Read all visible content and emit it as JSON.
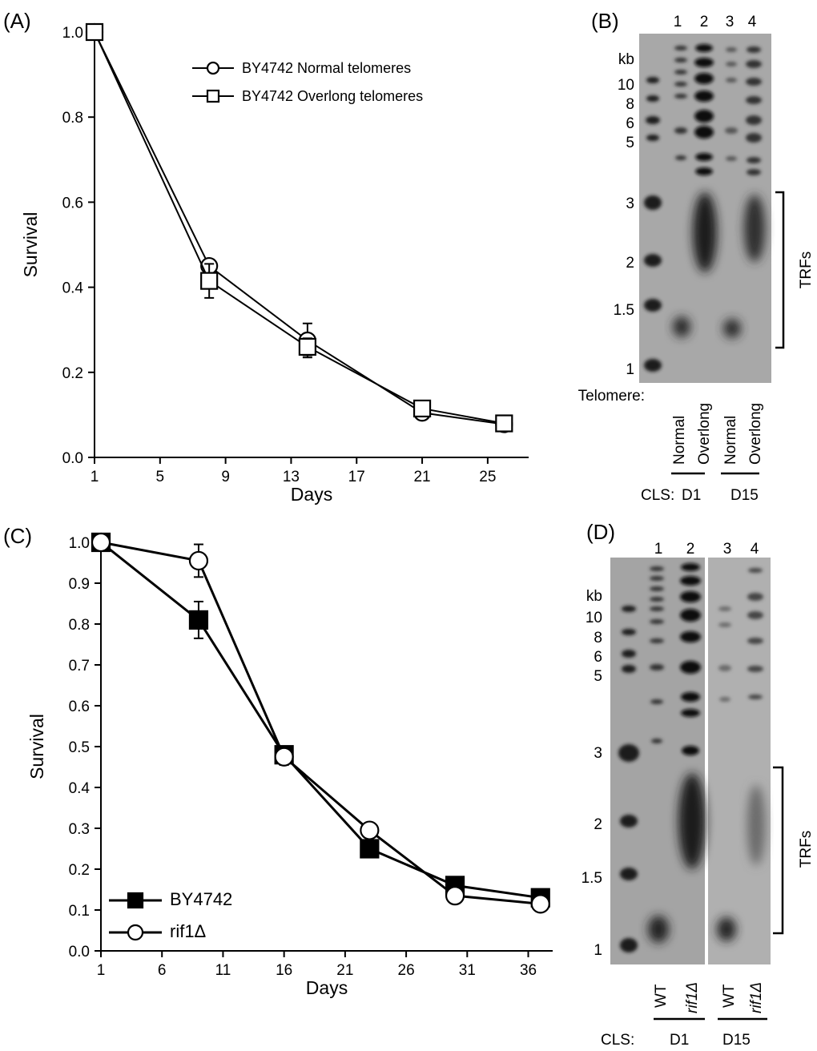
{
  "panels": {
    "a": "(A)",
    "b": "(B)",
    "c": "(C)",
    "d": "(D)"
  },
  "chart_data": [
    {
      "id": "A",
      "type": "line",
      "x": [
        1,
        8,
        14,
        21,
        26
      ],
      "series": [
        {
          "name": "BY4742 Normal telomeres",
          "marker": "circle-open",
          "values": [
            1.0,
            0.45,
            0.275,
            0.105,
            0.078
          ],
          "errors": [
            0,
            0.01,
            0.04,
            0.01,
            0.01
          ]
        },
        {
          "name": "BY4742 Overlong telomeres",
          "marker": "square-open",
          "values": [
            1.0,
            0.415,
            0.26,
            0.115,
            0.08
          ],
          "errors": [
            0,
            0.04,
            0.02,
            0.01,
            0.01
          ]
        }
      ],
      "xlabel": "Days",
      "ylabel": "Survival",
      "xticks": [
        "1",
        "5",
        "9",
        "13",
        "17",
        "21",
        "25"
      ],
      "yticks": [
        "0.0",
        "0.2",
        "0.4",
        "0.6",
        "0.8",
        "1.0"
      ],
      "xlim": [
        1,
        27.5
      ],
      "ylim": [
        0,
        1.0
      ],
      "legend": "top-right"
    },
    {
      "id": "C",
      "type": "line",
      "x": [
        1,
        9,
        16,
        23,
        30,
        37
      ],
      "series": [
        {
          "name": "BY4742",
          "marker": "square-filled",
          "values": [
            1.0,
            0.81,
            0.48,
            0.25,
            0.16,
            0.13
          ],
          "errors": [
            0,
            0.045,
            0.02,
            0.01,
            0.01,
            0.01
          ]
        },
        {
          "name": "rif1Δ",
          "marker": "circle-open",
          "values": [
            1.0,
            0.955,
            0.475,
            0.295,
            0.135,
            0.115
          ],
          "errors": [
            0,
            0.04,
            0.02,
            0.01,
            0.01,
            0.01
          ]
        }
      ],
      "xlabel": "Days",
      "ylabel": "Survival",
      "xticks": [
        "1",
        "6",
        "11",
        "16",
        "21",
        "26",
        "31",
        "36"
      ],
      "yticks": [
        "0.0",
        "0.1",
        "0.2",
        "0.3",
        "0.4",
        "0.5",
        "0.6",
        "0.7",
        "0.8",
        "0.9",
        "1.0"
      ],
      "xlim": [
        1,
        38
      ],
      "ylim": [
        0,
        1.0
      ],
      "legend": "bottom-left"
    }
  ],
  "gel_b": {
    "lanes": [
      "1",
      "2",
      "3",
      "4"
    ],
    "size_labels": [
      "kb",
      "10",
      "8",
      "6",
      "5",
      "3",
      "2",
      "1.5",
      "1"
    ],
    "telomere_label": "Telomere:",
    "lane_labels": [
      "Normal",
      "Overlong",
      "Normal",
      "Overlong"
    ],
    "cls_label": "CLS:",
    "cls_groups": [
      "D1",
      "D15"
    ],
    "bracket_label": "TRFs"
  },
  "gel_d": {
    "lanes": [
      "1",
      "2",
      "3",
      "4"
    ],
    "size_labels": [
      "kb",
      "10",
      "8",
      "6",
      "5",
      "3",
      "2",
      "1.5",
      "1"
    ],
    "lane_labels": [
      "WT",
      "rif1Δ",
      "WT",
      "rif1Δ"
    ],
    "cls_label": "CLS:",
    "cls_groups": [
      "D1",
      "D15"
    ],
    "bracket_label": "TRFs"
  },
  "colors": {
    "ink": "#000000",
    "gel_bg": "#a8a8a8",
    "band": "#1a1a1a"
  }
}
